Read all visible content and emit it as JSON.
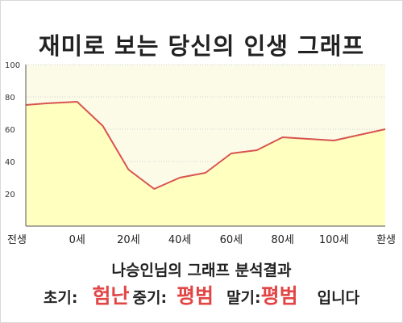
{
  "title": "재미로 보는 당신의 인생 그래프",
  "chart_data": {
    "type": "area",
    "x_labels": [
      "전생",
      "0세",
      "20세",
      "40세",
      "60세",
      "80세",
      "100세",
      "환생"
    ],
    "points": [
      {
        "x": -1,
        "y": 75
      },
      {
        "x": -0.6,
        "y": 76
      },
      {
        "x": 0,
        "y": 77
      },
      {
        "x": 0.5,
        "y": 62
      },
      {
        "x": 1,
        "y": 35
      },
      {
        "x": 1.5,
        "y": 23
      },
      {
        "x": 2,
        "y": 30
      },
      {
        "x": 2.5,
        "y": 33
      },
      {
        "x": 3,
        "y": 45
      },
      {
        "x": 3.5,
        "y": 47
      },
      {
        "x": 4,
        "y": 55
      },
      {
        "x": 4.5,
        "y": 54
      },
      {
        "x": 5,
        "y": 53
      },
      {
        "x": 6,
        "y": 60
      }
    ],
    "xlim": [
      -1,
      6
    ],
    "ylim": [
      0,
      100
    ],
    "y_ticks": [
      20,
      40,
      60,
      80,
      100
    ],
    "line_color": "#d9534f",
    "fill_color": "#ffffc0",
    "plot_bg": "#fbfbe8"
  },
  "analysis": {
    "subtitle": "나승인님의 그래프 분석결과",
    "early_label": "초기:",
    "early_value": "험난",
    "middle_label": "중기:",
    "middle_value": "평범",
    "late_label": "말기:",
    "late_value": "평범",
    "suffix": "입니다"
  }
}
